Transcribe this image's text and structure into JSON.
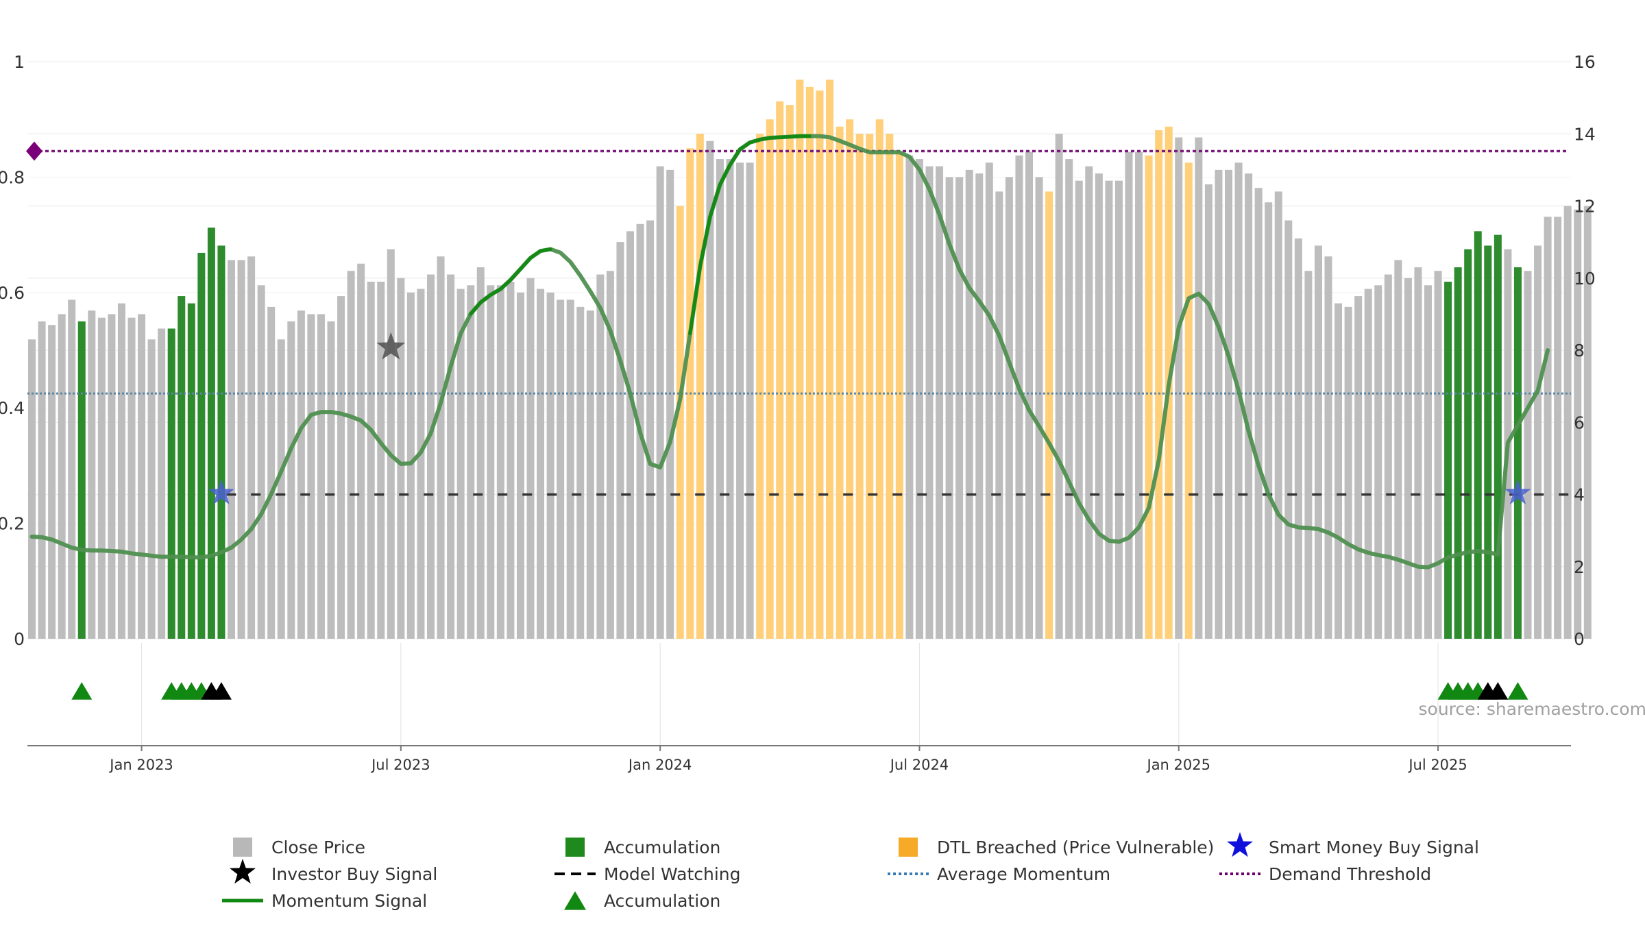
{
  "chart_data": {
    "type": "bar",
    "watermark": "source: sharemaestro.com",
    "x_ticks": [
      "Jan 2023",
      "Jul 2023",
      "Jan 2024",
      "Jul 2024",
      "Jan 2025",
      "Jul 2025"
    ],
    "x_tick_positions": [
      11,
      37,
      63,
      89,
      115,
      141
    ],
    "left_axis": {
      "range": [
        0,
        1
      ],
      "ticks": [
        "0",
        "0.2",
        "0.4",
        "0.6",
        "0.8",
        "1"
      ],
      "tick_values": [
        0,
        0.2,
        0.4,
        0.6,
        0.8,
        1
      ]
    },
    "right_axis": {
      "range": [
        0,
        16
      ],
      "ticks": [
        "0",
        "2",
        "4",
        "6",
        "8",
        "10",
        "12",
        "14",
        "16"
      ],
      "tick_values": [
        0,
        2,
        4,
        6,
        8,
        10,
        12,
        14,
        16
      ]
    },
    "close_price": [
      8.3,
      8.8,
      8.7,
      9.0,
      9.4,
      8.8,
      9.1,
      8.9,
      9.0,
      9.3,
      8.9,
      9.0,
      8.3,
      8.6,
      8.6,
      9.5,
      9.3,
      10.7,
      11.4,
      10.9,
      10.5,
      10.5,
      10.6,
      9.8,
      9.2,
      8.3,
      8.8,
      9.1,
      9.0,
      9.0,
      8.8,
      9.5,
      10.2,
      10.4,
      9.9,
      9.9,
      10.8,
      10.0,
      9.6,
      9.7,
      10.1,
      10.6,
      10.1,
      9.7,
      9.8,
      10.3,
      9.8,
      9.8,
      9.9,
      9.6,
      10.0,
      9.7,
      9.6,
      9.4,
      9.4,
      9.2,
      9.1,
      10.1,
      10.2,
      11.0,
      11.3,
      11.5,
      11.6,
      13.1,
      13.0,
      12.0,
      13.6,
      14.0,
      13.8,
      13.3,
      13.3,
      13.2,
      13.2,
      14.0,
      14.4,
      14.9,
      14.8,
      15.5,
      15.3,
      15.2,
      15.5,
      14.2,
      14.4,
      14.0,
      14.0,
      14.4,
      14.0,
      13.5,
      13.4,
      13.3,
      13.1,
      13.1,
      12.8,
      12.8,
      13.0,
      12.9,
      13.2,
      12.4,
      12.8,
      13.4,
      13.5,
      12.8,
      12.4,
      14.0,
      13.3,
      12.7,
      13.1,
      12.9,
      12.7,
      12.7,
      13.5,
      13.5,
      13.4,
      14.1,
      14.2,
      13.9,
      13.2,
      13.9,
      12.6,
      13.0,
      13.0,
      13.2,
      12.9,
      12.5,
      12.1,
      12.4,
      11.6,
      11.1,
      10.2,
      10.9,
      10.6,
      9.3,
      9.2,
      9.5,
      9.7,
      9.8,
      10.1,
      10.5,
      10.0,
      10.3,
      9.8,
      10.2,
      9.9,
      10.3,
      10.8,
      11.3,
      10.9,
      11.2,
      10.8,
      10.3,
      10.2,
      10.9,
      11.7,
      11.7,
      12.0,
      11.9,
      12.0
    ],
    "accumulation_bars": [
      5,
      14,
      15,
      16,
      17,
      18,
      19,
      142,
      143,
      144,
      145,
      146,
      147,
      149
    ],
    "dtl_breached_bars": [
      65,
      66,
      67,
      73,
      74,
      75,
      76,
      77,
      78,
      79,
      80,
      81,
      82,
      83,
      84,
      85,
      86,
      87,
      102,
      112,
      113,
      114,
      116
    ],
    "momentum_signal": [
      0.177,
      0.176,
      0.172,
      0.165,
      0.158,
      0.154,
      0.153,
      0.153,
      0.152,
      0.151,
      0.148,
      0.146,
      0.144,
      0.142,
      0.142,
      0.142,
      0.141,
      0.141,
      0.144,
      0.15,
      0.158,
      0.172,
      0.19,
      0.216,
      0.251,
      0.29,
      0.33,
      0.365,
      0.388,
      0.393,
      0.393,
      0.39,
      0.385,
      0.378,
      0.362,
      0.339,
      0.318,
      0.303,
      0.304,
      0.323,
      0.356,
      0.409,
      0.472,
      0.529,
      0.563,
      0.583,
      0.596,
      0.606,
      0.622,
      0.641,
      0.66,
      0.672,
      0.675,
      0.669,
      0.653,
      0.629,
      0.602,
      0.573,
      0.534,
      0.482,
      0.425,
      0.357,
      0.303,
      0.297,
      0.341,
      0.415,
      0.529,
      0.645,
      0.731,
      0.787,
      0.821,
      0.848,
      0.86,
      0.865,
      0.868,
      0.869,
      0.87,
      0.871,
      0.871,
      0.871,
      0.869,
      0.863,
      0.856,
      0.849,
      0.843,
      0.843,
      0.843,
      0.843,
      0.835,
      0.813,
      0.779,
      0.735,
      0.684,
      0.64,
      0.608,
      0.585,
      0.56,
      0.525,
      0.479,
      0.433,
      0.396,
      0.368,
      0.339,
      0.308,
      0.272,
      0.235,
      0.206,
      0.182,
      0.17,
      0.168,
      0.175,
      0.193,
      0.227,
      0.31,
      0.44,
      0.54,
      0.59,
      0.598,
      0.58,
      0.54,
      0.49,
      0.43,
      0.36,
      0.3,
      0.25,
      0.215,
      0.198,
      0.193,
      0.192,
      0.19,
      0.184,
      0.175,
      0.164,
      0.155,
      0.149,
      0.145,
      0.142,
      0.137,
      0.131,
      0.125,
      0.124,
      0.131,
      0.141,
      0.146,
      0.15,
      0.152,
      0.15,
      0.146,
      0.34,
      0.37,
      0.4,
      0.43,
      0.5
    ],
    "momentum_highlight_ranges": [
      [
        44,
        52
      ],
      [
        66,
        78
      ]
    ],
    "average_momentum": 0.425,
    "demand_threshold": 0.845,
    "model_watching": {
      "value": 0.25,
      "from": 19.5,
      "to": 155
    },
    "investor_buy_signal": [
      {
        "x": 36,
        "y": 0.505
      }
    ],
    "smart_money_buy_signal": [
      {
        "x": 19,
        "y": 0.252
      },
      {
        "x": 149,
        "y": 0.252
      }
    ],
    "accumulation_markers_green": [
      5,
      14,
      15,
      16,
      17,
      142,
      143,
      144,
      145,
      149
    ],
    "accumulation_markers_black": [
      18,
      19,
      146,
      147
    ],
    "colors": {
      "close_price": "#bdbdbd",
      "accumulation": "#2e8b2e",
      "dtl_breached": "#ffcf7a",
      "momentum": "#4f8f4f",
      "momentum_highlight": "#138a13",
      "average_momentum": "#5b87a5",
      "demand_threshold": "#7a1a7a",
      "model_watching": "#333333",
      "investor_star": "#555555",
      "smart_money_star": "#4a5fd0",
      "marker_green": "#118811",
      "marker_black": "#000000"
    },
    "legend": [
      {
        "label": "Close Price",
        "symbol": "square",
        "color": "#b8b8b8"
      },
      {
        "label": "Accumulation",
        "symbol": "square",
        "color": "#1e8a1e"
      },
      {
        "label": "DTL Breached (Price Vulnerable)",
        "symbol": "square",
        "color": "#f7a928"
      },
      {
        "label": "Smart Money Buy Signal",
        "symbol": "star",
        "color": "#1010dd"
      },
      {
        "label": "Investor Buy Signal",
        "symbol": "star",
        "color": "#000000"
      },
      {
        "label": "Model Watching",
        "symbol": "dash",
        "color": "#000000"
      },
      {
        "label": "Average Momentum",
        "symbol": "dot",
        "color": "#3a7ab5"
      },
      {
        "label": "Demand Threshold",
        "symbol": "dot",
        "color": "#6a006a"
      },
      {
        "label": "Momentum Signal",
        "symbol": "line",
        "color": "#118811"
      },
      {
        "label": "Accumulation",
        "symbol": "triangle",
        "color": "#118811"
      }
    ]
  }
}
